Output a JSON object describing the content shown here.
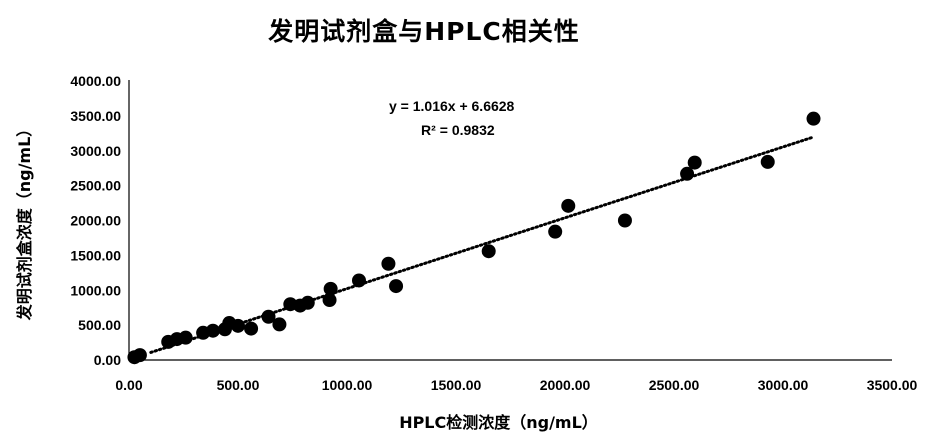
{
  "chart_data": {
    "type": "scatter",
    "title": "发明试剂盒与HPLC相关性",
    "xlabel": "HPLC检测浓度（ng/mL）",
    "ylabel": "发明试剂盒浓度（ng/mL）",
    "xlim": [
      0,
      3500
    ],
    "ylim": [
      0,
      4000
    ],
    "x_ticks": [
      "0.00",
      "500.00",
      "1000.00",
      "1500.00",
      "2000.00",
      "2500.00",
      "3000.00",
      "3500.00"
    ],
    "y_ticks": [
      "0.00",
      "500.00",
      "1000.00",
      "1500.00",
      "2000.00",
      "2500.00",
      "3000.00",
      "3500.00",
      "4000.00"
    ],
    "grid": false,
    "legend": "none",
    "marker_color": "#000000",
    "trendline": {
      "type": "linear",
      "style": "dotted",
      "slope": 1.016,
      "intercept": 6.6628,
      "x_range": [
        100,
        3130
      ],
      "equation": "y = 1.016x + 6.6628",
      "r_squared_label": "R²",
      "r_squared_value": "= 0.9832"
    },
    "x": [
      25,
      50,
      180,
      220,
      260,
      340,
      385,
      440,
      460,
      500,
      560,
      640,
      690,
      740,
      785,
      820,
      920,
      925,
      1055,
      1190,
      1225,
      1650,
      1955,
      2015,
      2275,
      2560,
      2595,
      2930,
      3140
    ],
    "y": [
      40,
      70,
      260,
      300,
      320,
      390,
      420,
      440,
      530,
      490,
      450,
      620,
      510,
      800,
      780,
      820,
      860,
      1020,
      1140,
      1380,
      1060,
      1560,
      1840,
      2210,
      2000,
      2670,
      2830,
      2840,
      3460
    ]
  }
}
